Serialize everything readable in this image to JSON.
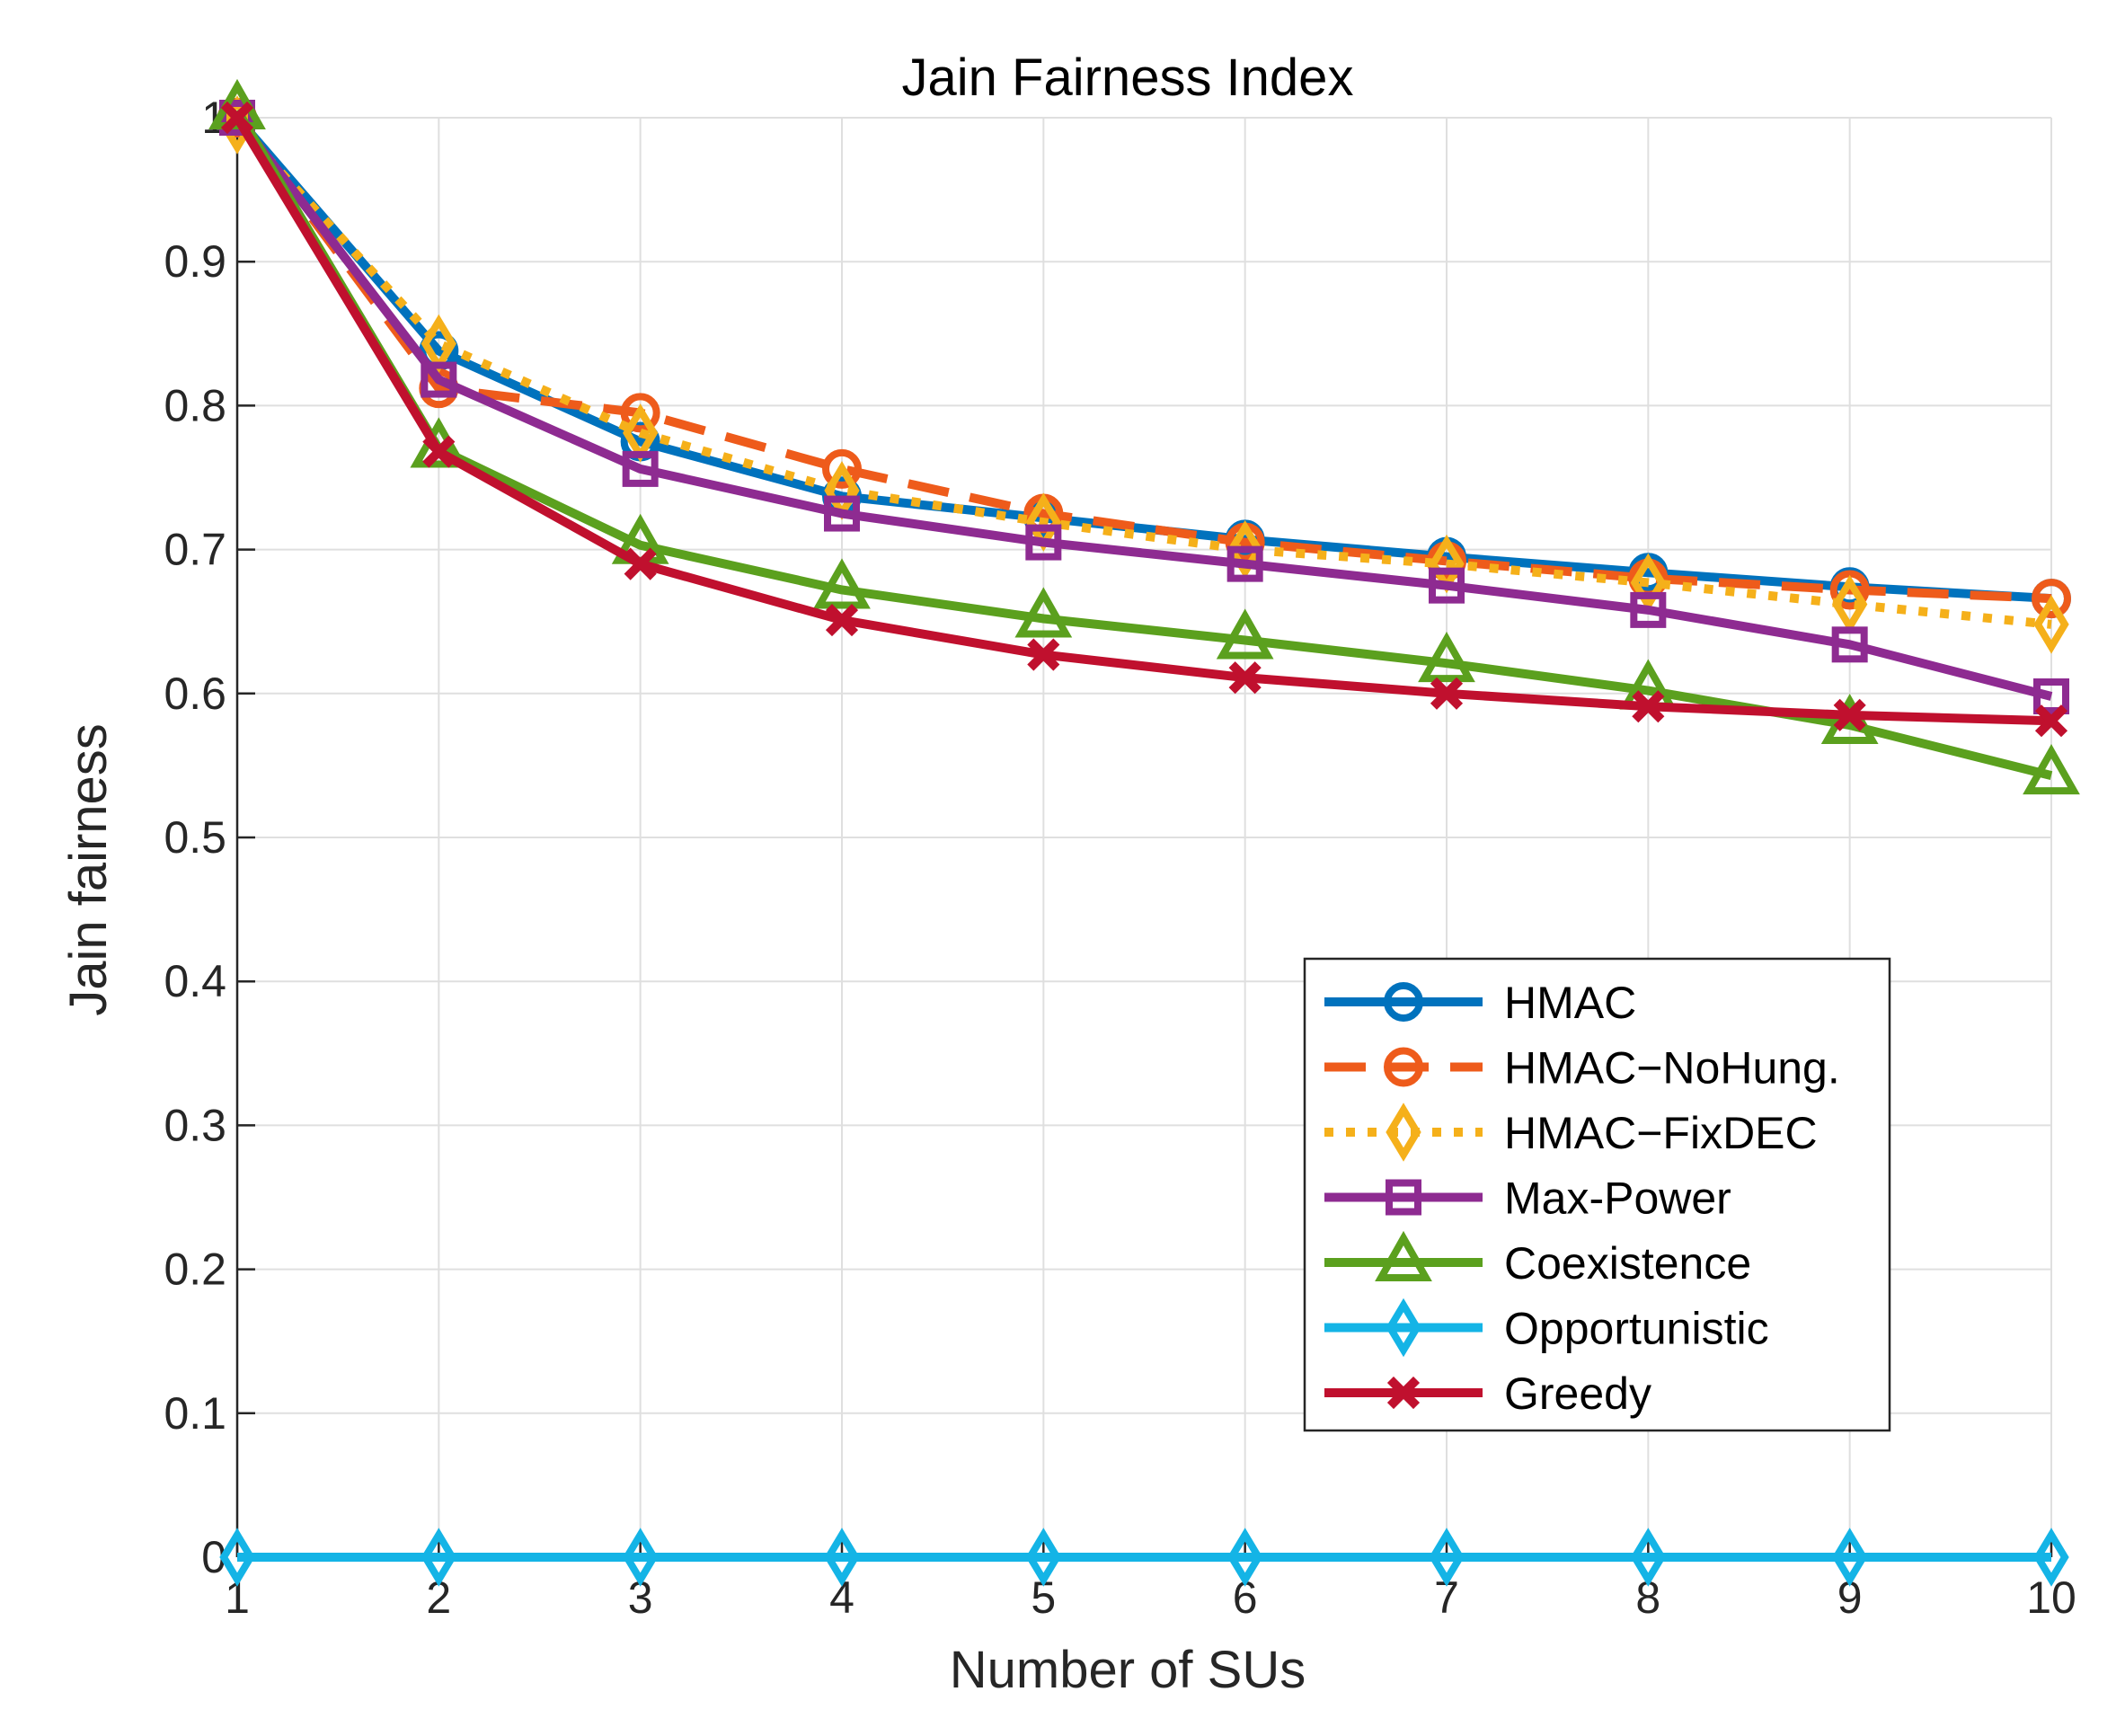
{
  "chart_data": {
    "type": "line",
    "title": "Jain Fairness Index",
    "xlabel": "Number of SUs",
    "ylabel": "Jain fairness",
    "x": [
      1,
      2,
      3,
      4,
      5,
      6,
      7,
      8,
      9,
      10
    ],
    "xlim": [
      1,
      10
    ],
    "ylim": [
      0,
      1
    ],
    "xticks": [
      1,
      2,
      3,
      4,
      5,
      6,
      7,
      8,
      9,
      10
    ],
    "yticks": [
      0,
      0.1,
      0.2,
      0.3,
      0.4,
      0.5,
      0.6,
      0.7,
      0.8,
      0.9,
      1
    ],
    "ytick_labels": [
      "0",
      "0.1",
      "0.2",
      "0.3",
      "0.4",
      "0.5",
      "0.6",
      "0.7",
      "0.8",
      "0.9",
      "1"
    ],
    "grid": true,
    "legend_position": "lower-right",
    "series": [
      {
        "name": "HMAC",
        "color": "#0072BD",
        "dash": "solid",
        "marker": "circle",
        "values": [
          1.0,
          0.838,
          0.775,
          0.737,
          0.722,
          0.707,
          0.695,
          0.684,
          0.674,
          0.666
        ]
      },
      {
        "name": "HMAC−NoHung.",
        "color": "#EE5B1B",
        "dash": "dashed",
        "marker": "circle",
        "values": [
          1.0,
          0.812,
          0.795,
          0.756,
          0.725,
          0.705,
          0.692,
          0.68,
          0.672,
          0.666
        ]
      },
      {
        "name": "HMAC−FixDEC",
        "color": "#F5B01A",
        "dash": "dotted",
        "marker": "diamond",
        "values": [
          0.995,
          0.843,
          0.781,
          0.741,
          0.719,
          0.7,
          0.69,
          0.677,
          0.662,
          0.648
        ]
      },
      {
        "name": "Max-Power",
        "color": "#8E2B91",
        "dash": "solid",
        "marker": "square",
        "values": [
          1.0,
          0.818,
          0.756,
          0.725,
          0.705,
          0.69,
          0.675,
          0.658,
          0.634,
          0.598
        ]
      },
      {
        "name": "Coexistence",
        "color": "#5BA01E",
        "dash": "solid",
        "marker": "triangle",
        "values": [
          1.005,
          0.77,
          0.703,
          0.672,
          0.652,
          0.637,
          0.621,
          0.602,
          0.578,
          0.543
        ]
      },
      {
        "name": "Opportunistic",
        "color": "#14B4E6",
        "dash": "solid",
        "marker": "diamond",
        "values": [
          0,
          0,
          0,
          0,
          0,
          0,
          0,
          0,
          0,
          0
        ]
      },
      {
        "name": "Greedy",
        "color": "#C0102E",
        "dash": "solid",
        "marker": "x",
        "values": [
          1.0,
          0.768,
          0.69,
          0.651,
          0.627,
          0.611,
          0.6,
          0.591,
          0.585,
          0.581
        ]
      }
    ]
  }
}
